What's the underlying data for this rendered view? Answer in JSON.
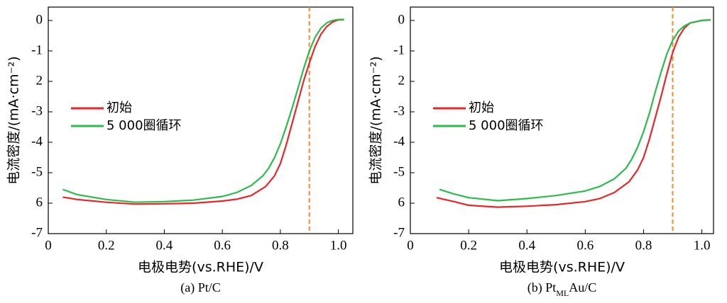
{
  "chart_data": [
    {
      "type": "line",
      "caption": [
        "(a) Pt/C"
      ],
      "xlabel": "电极电势(vs.RHE)/V",
      "ylabel": "电流密度/(mA·cm⁻²)",
      "xlim": [
        0,
        1.05
      ],
      "ylim": [
        -7,
        0.44
      ],
      "xticks": [
        0,
        0.2,
        0.4,
        0.6,
        0.8,
        {
          "value": 1,
          "label": "1.0"
        }
      ],
      "yticks": [
        0,
        -1,
        {
          "value": -2,
          "label": "2"
        },
        -3,
        -4,
        -5,
        {
          "value": -6,
          "label": "6"
        },
        -7
      ],
      "vline": {
        "x": 0.9,
        "color": "#f28c28"
      },
      "legend": "left",
      "series": [
        {
          "name": "初始",
          "color": "#e8262a",
          "x": [
            0.05,
            0.1,
            0.2,
            0.3,
            0.4,
            0.5,
            0.6,
            0.65,
            0.7,
            0.75,
            0.78,
            0.8,
            0.82,
            0.84,
            0.86,
            0.88,
            0.9,
            0.92,
            0.94,
            0.96,
            0.98,
            1.0,
            1.02
          ],
          "values": [
            -5.8,
            -5.88,
            -5.97,
            -6.03,
            -6.02,
            -6.0,
            -5.93,
            -5.87,
            -5.75,
            -5.45,
            -5.1,
            -4.7,
            -4.1,
            -3.4,
            -2.7,
            -2.0,
            -1.4,
            -0.85,
            -0.45,
            -0.2,
            -0.05,
            0.02,
            0.03
          ]
        },
        {
          "name": "5 000圈循环",
          "color": "#2dbb4c",
          "x": [
            0.05,
            0.1,
            0.2,
            0.3,
            0.4,
            0.5,
            0.6,
            0.65,
            0.7,
            0.74,
            0.76,
            0.78,
            0.8,
            0.82,
            0.84,
            0.86,
            0.88,
            0.9,
            0.92,
            0.94,
            0.96,
            0.98,
            1.0,
            1.02
          ],
          "values": [
            -5.55,
            -5.72,
            -5.88,
            -5.97,
            -5.95,
            -5.9,
            -5.78,
            -5.65,
            -5.42,
            -5.1,
            -4.85,
            -4.5,
            -4.05,
            -3.5,
            -2.9,
            -2.25,
            -1.6,
            -1.0,
            -0.55,
            -0.25,
            -0.08,
            0.0,
            0.03,
            0.03
          ]
        }
      ]
    },
    {
      "type": "line",
      "caption": [
        "(b) Pt",
        "ML",
        "Au/C"
      ],
      "xlabel": "电极电势(vs.RHE)/V",
      "ylabel": "电流密度/(mA·cm⁻²)",
      "xlim": [
        0,
        1.04
      ],
      "ylim": [
        -7,
        0.44
      ],
      "xticks": [
        0,
        0.2,
        0.4,
        0.6,
        0.8,
        {
          "value": 1,
          "label": "1.0"
        }
      ],
      "yticks": [
        0,
        -1,
        {
          "value": -2,
          "label": "2"
        },
        -3,
        -4,
        -5,
        {
          "value": -6,
          "label": "6"
        },
        -7
      ],
      "vline": {
        "x": 0.9,
        "color": "#f28c28"
      },
      "legend": "left",
      "series": [
        {
          "name": "初始",
          "color": "#e8262a",
          "x": [
            0.09,
            0.15,
            0.2,
            0.3,
            0.4,
            0.5,
            0.6,
            0.65,
            0.7,
            0.75,
            0.78,
            0.8,
            0.82,
            0.84,
            0.86,
            0.88,
            0.9,
            0.92,
            0.94,
            0.96,
            1.0,
            1.03
          ],
          "values": [
            -5.82,
            -5.95,
            -6.07,
            -6.13,
            -6.1,
            -6.05,
            -5.95,
            -5.85,
            -5.65,
            -5.3,
            -4.9,
            -4.5,
            -3.9,
            -3.2,
            -2.5,
            -1.75,
            -1.05,
            -0.55,
            -0.25,
            -0.08,
            0.0,
            0.02
          ]
        },
        {
          "name": "5 000圈循环",
          "color": "#2dbb4c",
          "x": [
            0.1,
            0.15,
            0.2,
            0.3,
            0.4,
            0.5,
            0.6,
            0.65,
            0.7,
            0.74,
            0.76,
            0.78,
            0.8,
            0.82,
            0.84,
            0.86,
            0.88,
            0.9,
            0.92,
            0.94,
            0.96,
            1.0,
            1.03
          ],
          "values": [
            -5.55,
            -5.7,
            -5.82,
            -5.92,
            -5.85,
            -5.75,
            -5.6,
            -5.45,
            -5.2,
            -4.85,
            -4.55,
            -4.15,
            -3.65,
            -3.05,
            -2.35,
            -1.7,
            -1.1,
            -0.65,
            -0.35,
            -0.18,
            -0.08,
            0.0,
            0.02
          ]
        }
      ]
    }
  ]
}
